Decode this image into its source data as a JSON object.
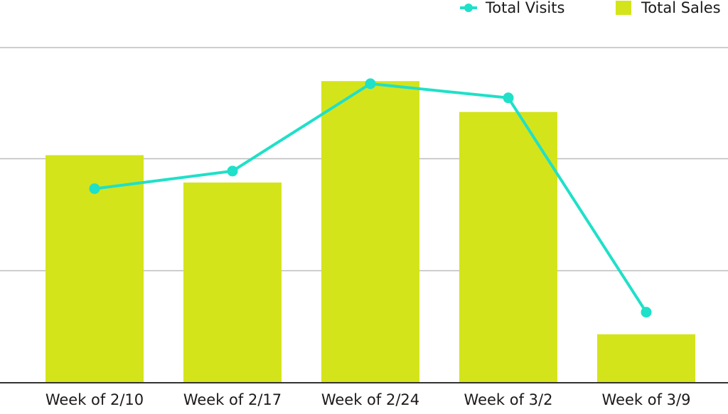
{
  "chart_data": {
    "type": "bar",
    "categories": [
      "Week of 2/10",
      "Week of 2/17",
      "Week of 2/24",
      "Week of 3/2",
      "Week of 3/9"
    ],
    "series": [
      {
        "name": "Total Sales",
        "type": "bar",
        "color": "#d4e41a",
        "values": [
          2.58,
          2.27,
          3.42,
          3.07,
          0.55
        ]
      },
      {
        "name": "Total Visits",
        "type": "line",
        "color": "#1fe0c8",
        "values": [
          2.2,
          2.4,
          3.39,
          3.23,
          0.8
        ]
      }
    ],
    "ylim": [
      0,
      3.8
    ],
    "gridlines": [
      1.27,
      2.54,
      3.8
    ],
    "grid": true,
    "legend_position": "top-right",
    "xlabel": "",
    "ylabel": ""
  },
  "legend": {
    "visits_label": "Total Visits",
    "sales_label": "Total Sales"
  }
}
